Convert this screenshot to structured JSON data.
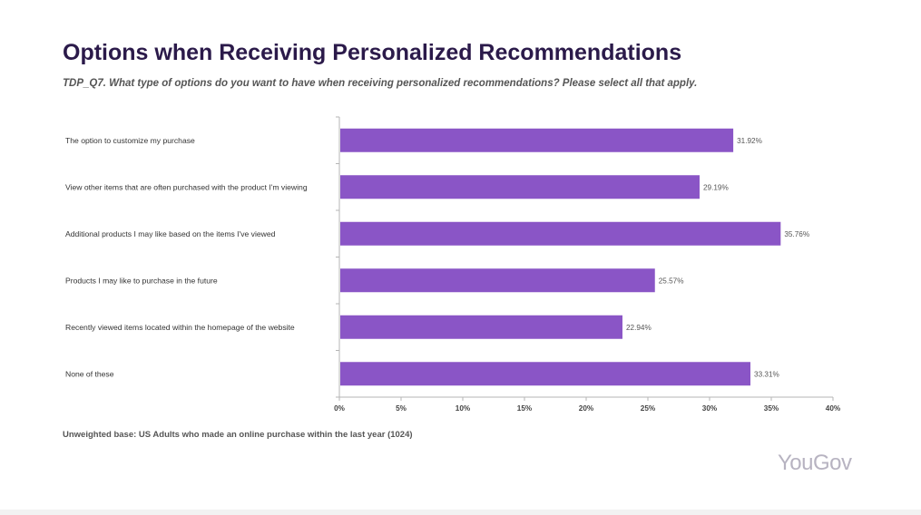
{
  "header": {
    "title": "Options when Receiving Personalized Recommendations",
    "subtitle": "TDP_Q7. What type of options do you want to have when receiving personalized recommendations? Please select all that apply."
  },
  "chart_data": {
    "type": "bar",
    "orientation": "horizontal",
    "categories": [
      "The option to customize my purchase",
      "View other items that are often purchased with the product I'm viewing",
      "Additional products I may like based on the items I've viewed",
      "Products I may like to purchase in the future",
      "Recently viewed items located within the homepage of the website",
      "None of these"
    ],
    "values": [
      31.92,
      29.19,
      35.76,
      25.57,
      22.94,
      33.31
    ],
    "value_labels": [
      "31.92%",
      "29.19%",
      "35.76%",
      "25.57%",
      "22.94%",
      "33.31%"
    ],
    "xlim": [
      0,
      40
    ],
    "xticks": [
      0,
      5,
      10,
      15,
      20,
      25,
      30,
      35,
      40
    ],
    "xtick_labels": [
      "0%",
      "5%",
      "10%",
      "15%",
      "20%",
      "25%",
      "30%",
      "35%",
      "40%"
    ],
    "bar_color": "#8a55c6",
    "grid": false,
    "legend": "none"
  },
  "footer": {
    "base_note": "Unweighted base: US Adults who made an online purchase within the last year (1024)",
    "logo_text": "YouGov"
  }
}
